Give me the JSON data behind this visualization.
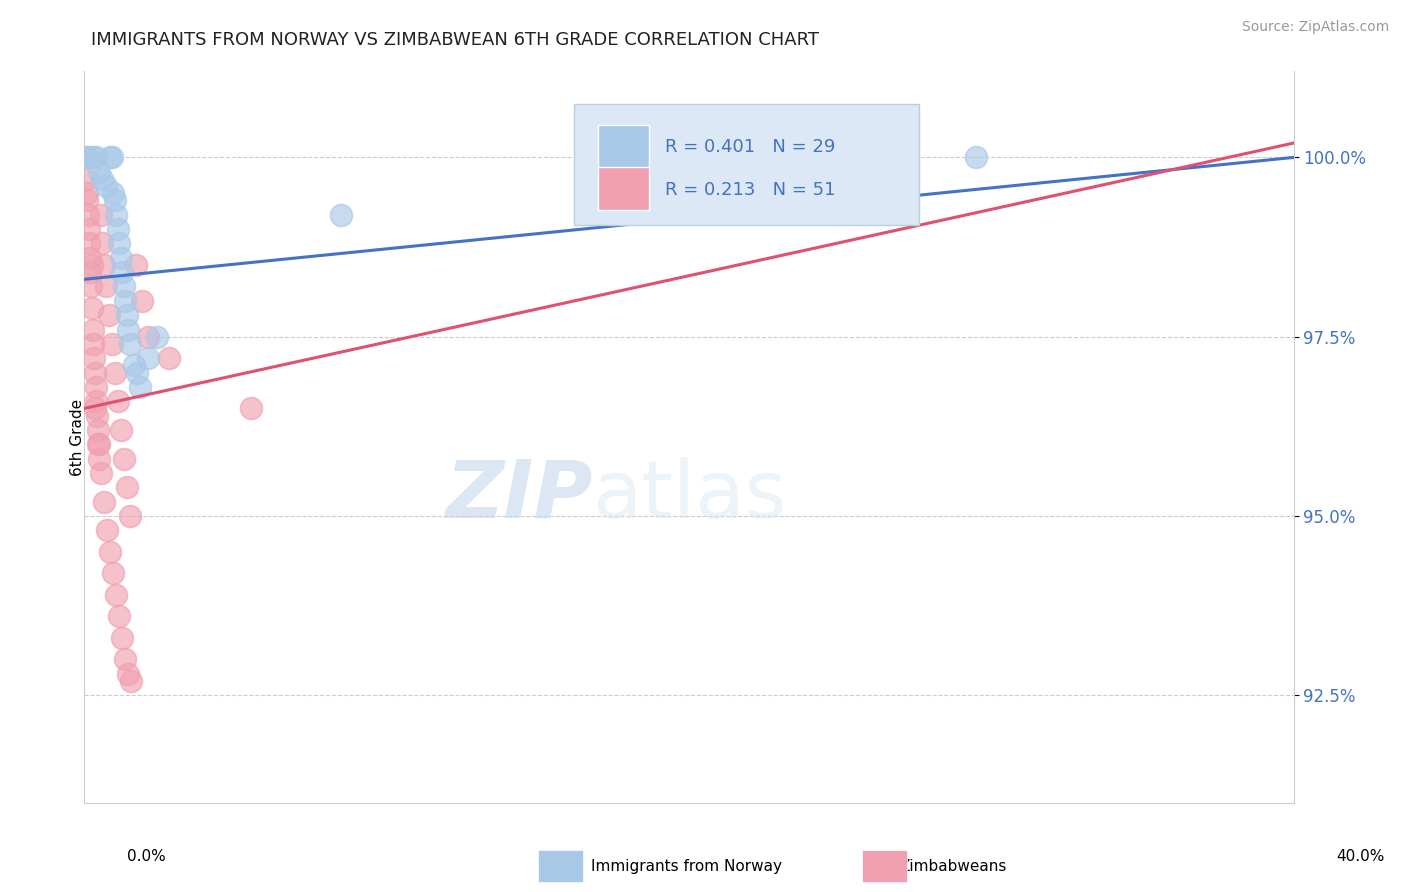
{
  "title": "IMMIGRANTS FROM NORWAY VS ZIMBABWEAN 6TH GRADE CORRELATION CHART",
  "source": "Source: ZipAtlas.com",
  "ylabel": "6th Grade",
  "yticks": [
    92.5,
    95.0,
    97.5,
    100.0
  ],
  "ytick_labels": [
    "92.5%",
    "95.0%",
    "97.5%",
    "100.0%"
  ],
  "xlim": [
    0.0,
    40.0
  ],
  "ylim": [
    91.0,
    101.2
  ],
  "legend_r_norway": "R = 0.401",
  "legend_n_norway": "N = 29",
  "legend_r_zimbabwe": "R = 0.213",
  "legend_n_zimbabwe": "N = 51",
  "norway_color": "#a8c8e8",
  "zimbabwe_color": "#f0a0b0",
  "norway_line_color": "#4472c4",
  "zimbabwe_line_color": "#e05070",
  "watermark_zip": "ZIP",
  "watermark_atlas": "atlas",
  "norway_x": [
    0.08,
    0.1,
    0.85,
    0.9,
    0.95,
    1.0,
    1.05,
    1.1,
    1.15,
    1.2,
    1.25,
    1.3,
    1.35,
    1.4,
    1.45,
    1.5,
    0.5,
    0.6,
    0.7,
    8.5,
    17.5,
    29.5,
    1.75,
    2.1,
    0.3,
    0.4,
    1.65,
    1.85,
    2.4
  ],
  "norway_y": [
    100.0,
    100.0,
    100.0,
    100.0,
    99.5,
    99.4,
    99.2,
    99.0,
    98.8,
    98.6,
    98.4,
    98.2,
    98.0,
    97.8,
    97.6,
    97.4,
    99.8,
    99.7,
    99.6,
    99.2,
    100.0,
    100.0,
    97.0,
    97.2,
    100.0,
    100.0,
    97.1,
    96.8,
    97.5
  ],
  "zimbabwe_x": [
    0.06,
    0.08,
    0.1,
    0.12,
    0.14,
    0.16,
    0.18,
    0.2,
    0.22,
    0.25,
    0.28,
    0.3,
    0.32,
    0.35,
    0.38,
    0.4,
    0.42,
    0.45,
    0.48,
    0.5,
    0.55,
    0.6,
    0.65,
    0.7,
    0.8,
    0.9,
    1.0,
    1.1,
    1.2,
    1.3,
    1.4,
    1.5,
    1.7,
    1.9,
    2.1,
    0.35,
    0.45,
    0.55,
    0.65,
    0.75,
    0.85,
    0.95,
    1.05,
    1.15,
    1.25,
    1.35,
    1.45,
    1.55,
    2.8,
    5.5,
    0.25
  ],
  "zimbabwe_y": [
    99.7,
    99.5,
    99.4,
    99.2,
    99.0,
    98.8,
    98.6,
    98.4,
    98.2,
    97.9,
    97.6,
    97.4,
    97.2,
    97.0,
    96.8,
    96.6,
    96.4,
    96.2,
    96.0,
    95.8,
    99.2,
    98.8,
    98.5,
    98.2,
    97.8,
    97.4,
    97.0,
    96.6,
    96.2,
    95.8,
    95.4,
    95.0,
    98.5,
    98.0,
    97.5,
    96.5,
    96.0,
    95.6,
    95.2,
    94.8,
    94.5,
    94.2,
    93.9,
    93.6,
    93.3,
    93.0,
    92.8,
    92.7,
    97.2,
    96.5,
    98.5
  ]
}
